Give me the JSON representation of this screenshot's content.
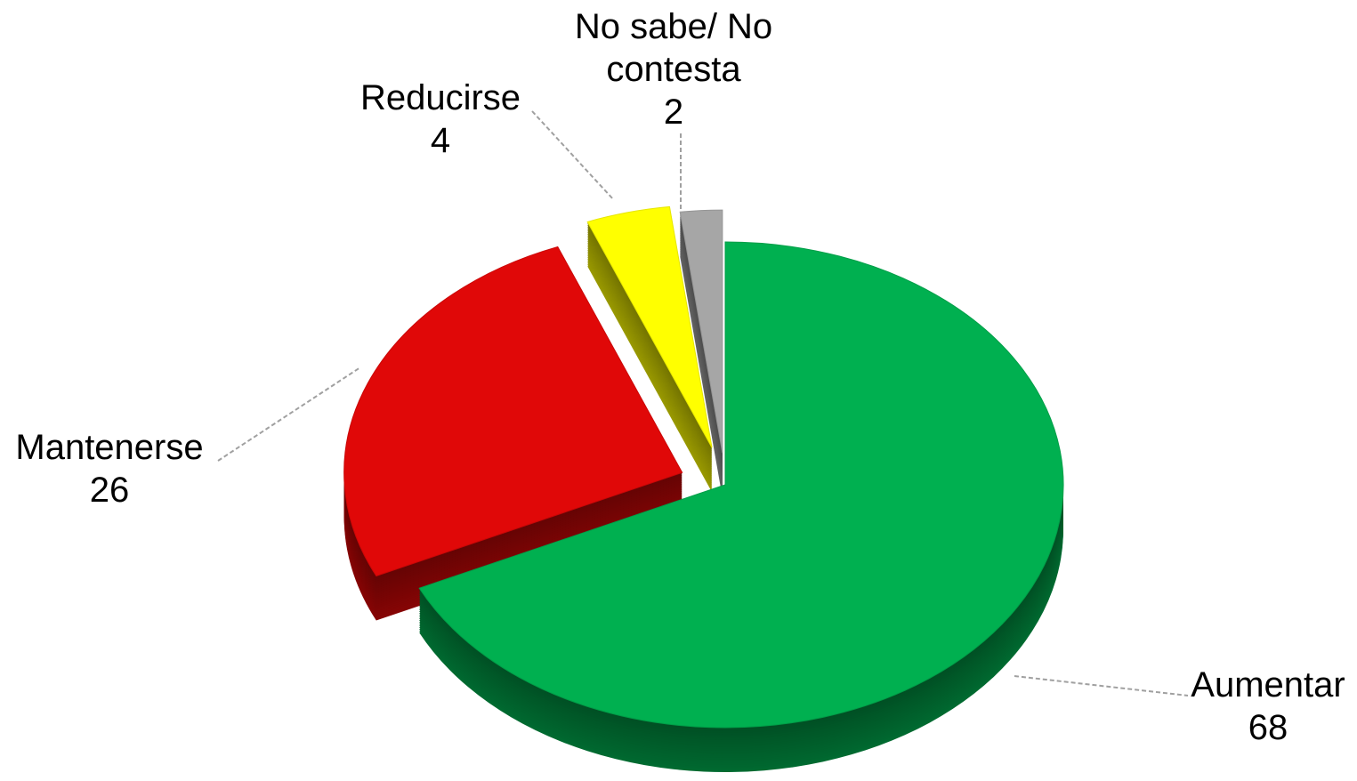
{
  "chart_data": {
    "type": "pie",
    "categories": [
      "Aumentar",
      "Mantenerse",
      "Reducirse",
      "No sabe/ No contesta"
    ],
    "values": [
      68,
      26,
      4,
      2
    ],
    "colors": [
      "#00b050",
      "#e00808",
      "#ffff00",
      "#a6a6a6"
    ]
  }
}
